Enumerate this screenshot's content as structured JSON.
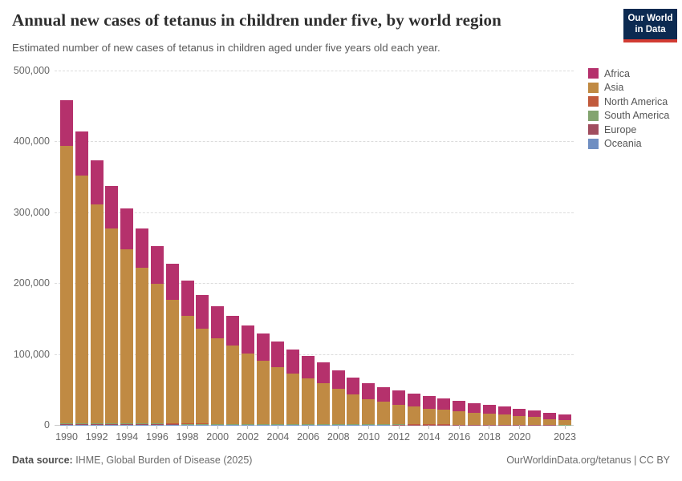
{
  "header": {
    "title": "Annual new cases of tetanus in children under five, by world region",
    "subtitle": "Estimated number of new cases of tetanus in children aged under five years old each year.",
    "logo": {
      "line1": "Our World",
      "line2": "in Data",
      "bg_color": "#0c2a51",
      "accent_color": "#d23b32"
    }
  },
  "footer": {
    "source_label": "Data source:",
    "source_value": " IHME, Global Burden of Disease (2025)",
    "link": "OurWorldinData.org/tetanus",
    "license": " | CC BY"
  },
  "chart_data": {
    "type": "bar",
    "stacked": true,
    "title": "Annual new cases of tetanus in children under five, by world region",
    "xlabel": "",
    "ylabel": "",
    "ylim": [
      0,
      500000
    ],
    "grid": "horizontal-dashed",
    "legend_position": "right",
    "stack_order": "first-series-on-top",
    "x": [
      1990,
      1991,
      1992,
      1993,
      1994,
      1995,
      1996,
      1997,
      1998,
      1999,
      2000,
      2001,
      2002,
      2003,
      2004,
      2005,
      2006,
      2007,
      2008,
      2009,
      2010,
      2011,
      2012,
      2013,
      2014,
      2015,
      2016,
      2017,
      2018,
      2019,
      2020,
      2021,
      2022,
      2023
    ],
    "x_tick_labels": [
      "1990",
      "1992",
      "1994",
      "1996",
      "1998",
      "2000",
      "2002",
      "2004",
      "2006",
      "2008",
      "2010",
      "2012",
      "2014",
      "2016",
      "2018",
      "2020",
      "2023"
    ],
    "y_ticks": [
      0,
      100000,
      200000,
      300000,
      400000,
      500000
    ],
    "y_tick_labels": [
      "0",
      "100,000",
      "200,000",
      "300,000",
      "400,000",
      "500,000"
    ],
    "series": [
      {
        "name": "Africa",
        "color": "#B5316C",
        "values": [
          65000,
          63000,
          62000,
          60000,
          57500,
          55500,
          53500,
          51500,
          49500,
          47500,
          45500,
          42500,
          39500,
          37500,
          35500,
          34500,
          31500,
          29500,
          26000,
          24500,
          22000,
          21000,
          20000,
          18600,
          17300,
          16200,
          15000,
          13900,
          12900,
          11800,
          10600,
          9500,
          8600,
          7900
        ]
      },
      {
        "name": "Asia",
        "color": "#C08A43",
        "values": [
          391000,
          349000,
          309000,
          275000,
          245500,
          219500,
          196500,
          174000,
          152500,
          134500,
          120500,
          110000,
          99500,
          89500,
          80500,
          71000,
          64500,
          57500,
          50000,
          41500,
          35500,
          31500,
          27800,
          25000,
          22300,
          20400,
          18200,
          16400,
          15300,
          13900,
          12200,
          10800,
          8000,
          6500
        ]
      },
      {
        "name": "North America",
        "color": "#C15A3C",
        "values": [
          400,
          390,
          380,
          370,
          360,
          350,
          340,
          330,
          320,
          310,
          300,
          290,
          280,
          270,
          260,
          250,
          240,
          230,
          220,
          210,
          200,
          190,
          180,
          170,
          160,
          150,
          140,
          130,
          120,
          110,
          100,
          95,
          90,
          85
        ]
      },
      {
        "name": "South America",
        "color": "#83A46F",
        "values": [
          1500,
          1440,
          1380,
          1320,
          1260,
          1200,
          1100,
          1050,
          1000,
          950,
          900,
          850,
          800,
          750,
          700,
          650,
          600,
          550,
          500,
          460,
          420,
          390,
          360,
          330,
          300,
          270,
          240,
          210,
          190,
          170,
          150,
          130,
          110,
          100
        ]
      },
      {
        "name": "Europe",
        "color": "#A04D5E",
        "values": [
          600,
          580,
          560,
          540,
          520,
          500,
          480,
          460,
          440,
          420,
          400,
          380,
          360,
          340,
          320,
          300,
          280,
          260,
          240,
          220,
          200,
          190,
          180,
          170,
          160,
          150,
          140,
          130,
          120,
          110,
          100,
          95,
          90,
          85
        ]
      },
      {
        "name": "Oceania",
        "color": "#708FC2",
        "values": [
          200,
          190,
          185,
          180,
          175,
          170,
          165,
          160,
          155,
          150,
          145,
          140,
          135,
          130,
          125,
          120,
          115,
          110,
          105,
          100,
          95,
          90,
          85,
          80,
          75,
          70,
          65,
          60,
          55,
          50,
          45,
          40,
          38,
          35
        ]
      }
    ]
  }
}
